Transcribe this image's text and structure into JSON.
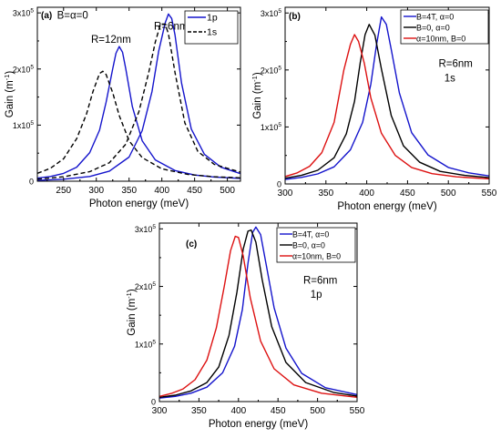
{
  "chart_data": [
    {
      "type": "line",
      "panel_label": "(a)",
      "xlabel": "Photon energy (meV)",
      "ylabel_main": "Gain (m",
      "ylabel_sup": "-1",
      "ylabel_close": ")",
      "xlim": [
        210,
        520
      ],
      "ylim": [
        0,
        310000
      ],
      "xticks": [
        250,
        300,
        350,
        400,
        450,
        500
      ],
      "xtick_labels": [
        "250",
        "300",
        "350",
        "400",
        "450",
        "500"
      ],
      "yticks": [
        0,
        100000,
        200000,
        300000
      ],
      "ytick_labels": [
        {
          "m": "0",
          "e": ""
        },
        {
          "m": "1x10",
          "e": "5"
        },
        {
          "m": "2x10",
          "e": "5"
        },
        {
          "m": "3x10",
          "e": "5"
        }
      ],
      "legend_position": "top-right",
      "text_annotations": [
        {
          "text": "B=α=0",
          "x": 240,
          "y": 290000
        },
        {
          "text": "R=12nm",
          "x": 292,
          "y": 247000
        },
        {
          "text": "R=6nm",
          "x": 388,
          "y": 270000
        }
      ],
      "series": [
        {
          "name": "1p",
          "color": "#1414cc",
          "style": "solid",
          "x": [
            210,
            230,
            250,
            270,
            290,
            305,
            315,
            325,
            330,
            335,
            340,
            345,
            355,
            370,
            390,
            420,
            450,
            480,
            520
          ],
          "y": [
            5500,
            8500,
            14000,
            25000,
            51000,
            91000,
            141000,
            200000,
            228000,
            240000,
            230000,
            200000,
            133000,
            72000,
            38000,
            19000,
            11000,
            7500,
            5000
          ]
        },
        {
          "name": "",
          "color": "#1414cc",
          "style": "solid",
          "x": [
            210,
            250,
            290,
            320,
            350,
            370,
            385,
            395,
            405,
            410,
            415,
            420,
            430,
            445,
            465,
            490,
            520
          ],
          "y": [
            1500,
            3500,
            8500,
            18000,
            43000,
            90000,
            160000,
            231000,
            282000,
            298000,
            290000,
            261000,
            175000,
            93000,
            48000,
            25000,
            13500
          ]
        },
        {
          "name": "1s",
          "color": "#000000",
          "style": "dashed",
          "x": [
            210,
            230,
            250,
            270,
            285,
            295,
            305,
            310,
            315,
            325,
            335,
            350,
            370,
            400,
            440,
            480,
            520
          ],
          "y": [
            14000,
            23000,
            40000,
            76000,
            120000,
            160000,
            192000,
            196000,
            190000,
            158000,
            117000,
            72000,
            42000,
            22000,
            12000,
            8000,
            6000
          ]
        },
        {
          "name": "",
          "color": "#000000",
          "style": "dashed",
          "x": [
            210,
            250,
            290,
            320,
            345,
            365,
            380,
            390,
            398,
            405,
            410,
            420,
            435,
            455,
            480,
            520
          ],
          "y": [
            3500,
            8000,
            17000,
            33000,
            66000,
            124000,
            194000,
            248000,
            280000,
            280000,
            263000,
            194000,
            104000,
            53000,
            30000,
            16000
          ]
        }
      ]
    },
    {
      "type": "line",
      "panel_label": "(b)",
      "xlabel": "Photon energy (meV)",
      "ylabel_main": "Gain (m",
      "ylabel_sup": "-1",
      "ylabel_close": ")",
      "xlim": [
        300,
        550
      ],
      "ylim": [
        0,
        310000
      ],
      "xticks": [
        300,
        350,
        400,
        450,
        500,
        550
      ],
      "xtick_labels": [
        "300",
        "350",
        "400",
        "450",
        "500",
        "550"
      ],
      "yticks": [
        0,
        100000,
        200000,
        300000
      ],
      "ytick_labels": [
        {
          "m": "0",
          "e": ""
        },
        {
          "m": "1x10",
          "e": "5"
        },
        {
          "m": "2x10",
          "e": "5"
        },
        {
          "m": "3x10",
          "e": "5"
        }
      ],
      "legend_position": "top-right",
      "text_annotations": [
        {
          "text": "R=6nm",
          "x": 488,
          "y": 205000
        },
        {
          "text": "1s",
          "x": 495,
          "y": 180000
        }
      ],
      "series": [
        {
          "name": "B=4T, α=0",
          "color": "#1414cc",
          "style": "solid",
          "x": [
            300,
            320,
            340,
            360,
            380,
            395,
            405,
            412,
            418,
            424,
            430,
            440,
            455,
            475,
            500,
            525,
            550
          ],
          "y": [
            8000,
            11500,
            17500,
            30000,
            60000,
            108000,
            175000,
            245000,
            293000,
            280000,
            236000,
            160000,
            90000,
            51000,
            29000,
            19500,
            14000
          ]
        },
        {
          "name": "B=0, α=0",
          "color": "#000000",
          "style": "solid",
          "x": [
            300,
            320,
            340,
            360,
            375,
            385,
            392,
            398,
            403,
            410,
            418,
            430,
            445,
            465,
            490,
            520,
            550
          ],
          "y": [
            10000,
            15000,
            24000,
            46000,
            88000,
            145000,
            212000,
            262000,
            280000,
            261000,
            202000,
            120000,
            67000,
            38000,
            22000,
            15000,
            11000
          ]
        },
        {
          "name": "α=10nm, B=0",
          "color": "#dd1111",
          "style": "solid",
          "x": [
            300,
            315,
            330,
            345,
            360,
            372,
            380,
            385,
            390,
            397,
            405,
            418,
            435,
            455,
            480,
            510,
            550
          ],
          "y": [
            13000,
            19500,
            31000,
            55000,
            108000,
            200000,
            245000,
            262000,
            250000,
            212000,
            151000,
            89000,
            50000,
            29000,
            18000,
            12500,
            9000
          ]
        }
      ]
    },
    {
      "type": "line",
      "panel_label": "(c)",
      "xlabel": "Photon energy (meV)",
      "ylabel_main": "Gain (m",
      "ylabel_sup": "-1",
      "ylabel_close": ")",
      "xlim": [
        300,
        550
      ],
      "ylim": [
        0,
        310000
      ],
      "xticks": [
        300,
        350,
        400,
        450,
        500,
        550
      ],
      "xtick_labels": [
        "300",
        "350",
        "400",
        "450",
        "500",
        "550"
      ],
      "yticks": [
        0,
        100000,
        200000,
        300000
      ],
      "ytick_labels": [
        {
          "m": "0",
          "e": ""
        },
        {
          "m": "1x10",
          "e": "5"
        },
        {
          "m": "2x10",
          "e": "5"
        },
        {
          "m": "3x10",
          "e": "5"
        }
      ],
      "legend_position": "top-right",
      "text_annotations": [
        {
          "text": "R=6nm",
          "x": 482,
          "y": 205000
        },
        {
          "text": "1p",
          "x": 491,
          "y": 180000
        }
      ],
      "series": [
        {
          "name": "B=4T, α=0",
          "color": "#1414cc",
          "style": "solid",
          "x": [
            300,
            320,
            340,
            360,
            380,
            395,
            405,
            412,
            418,
            422,
            428,
            435,
            445,
            460,
            480,
            510,
            550
          ],
          "y": [
            6000,
            9000,
            14500,
            25000,
            50000,
            96000,
            160000,
            240000,
            294000,
            303000,
            290000,
            238000,
            163000,
            93000,
            49000,
            24000,
            12000
          ]
        },
        {
          "name": "B=0, α=0",
          "color": "#000000",
          "style": "solid",
          "x": [
            300,
            320,
            340,
            360,
            375,
            388,
            398,
            406,
            412,
            416,
            422,
            430,
            442,
            460,
            485,
            520,
            550
          ],
          "y": [
            7500,
            11000,
            18500,
            33000,
            60000,
            115000,
            190000,
            265000,
            296000,
            298000,
            277000,
            212000,
            130000,
            68000,
            33000,
            16000,
            9500
          ]
        },
        {
          "name": "α=10nm, B=0",
          "color": "#dd1111",
          "style": "solid",
          "x": [
            300,
            315,
            330,
            345,
            360,
            372,
            382,
            390,
            396,
            400,
            406,
            415,
            428,
            445,
            470,
            505,
            550
          ],
          "y": [
            9000,
            14000,
            22000,
            38000,
            72000,
            128000,
            200000,
            262000,
            287000,
            285000,
            253000,
            180000,
            105000,
            57000,
            29000,
            14500,
            7500
          ]
        }
      ]
    }
  ]
}
